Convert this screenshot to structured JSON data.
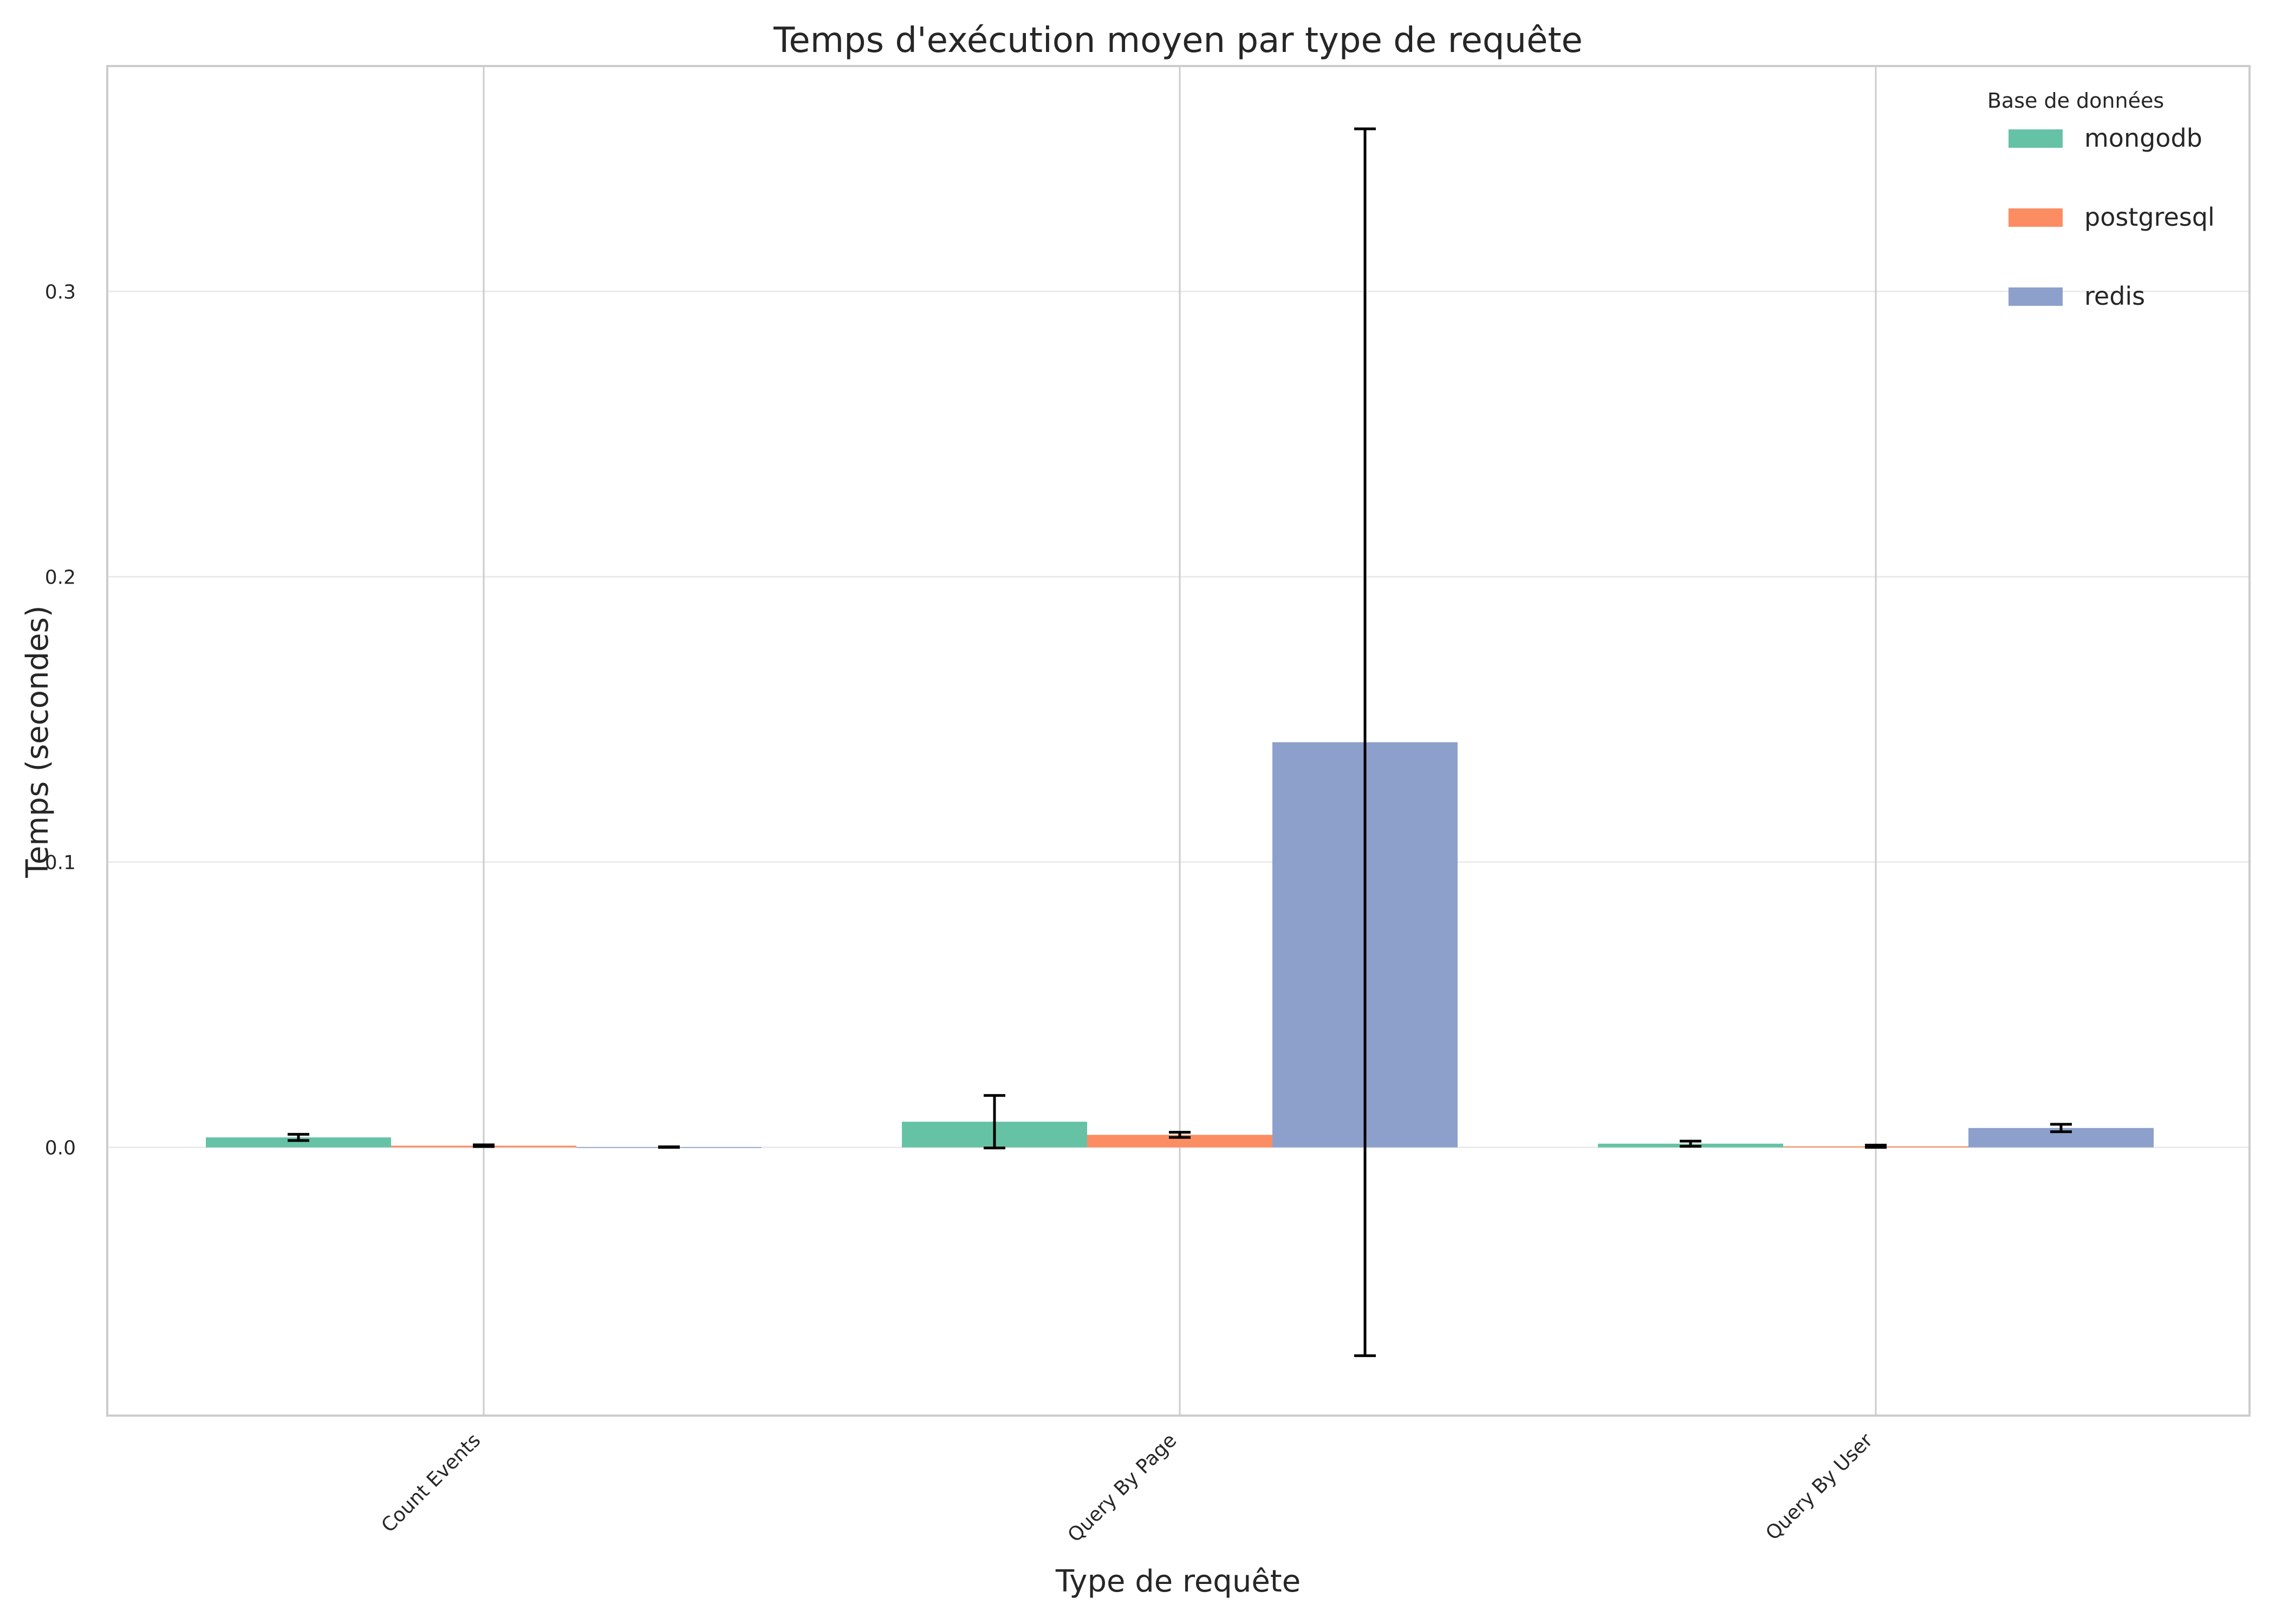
{
  "chart_data": {
    "type": "bar",
    "title": "Temps d'exécution moyen par type de requête",
    "xlabel": "Type de requête",
    "ylabel": "Temps (secondes)",
    "categories": [
      "Count Events",
      "Query By Page",
      "Query By User"
    ],
    "ylim": [
      -0.094,
      0.379
    ],
    "yticks": [
      0.0,
      0.1,
      0.2,
      0.3
    ],
    "ytick_labels": [
      "0.0",
      "0.1",
      "0.2",
      "0.3"
    ],
    "grid": true,
    "legend": {
      "title": "Base de données",
      "position": "top-right"
    },
    "series": [
      {
        "name": "mongodb",
        "color": "#66c2a5",
        "values": [
          0.0035,
          0.009,
          0.0013
        ],
        "errors": [
          0.0011,
          0.0092,
          0.0009
        ]
      },
      {
        "name": "postgresql",
        "color": "#fc8d62",
        "values": [
          0.0006,
          0.0044,
          0.0004
        ],
        "errors": [
          0.0003,
          0.0009,
          0.0004
        ]
      },
      {
        "name": "redis",
        "color": "#8da0cb",
        "values": [
          0.0001,
          0.142,
          0.0068
        ],
        "errors": [
          0.0001,
          0.215,
          0.0013
        ]
      }
    ]
  }
}
